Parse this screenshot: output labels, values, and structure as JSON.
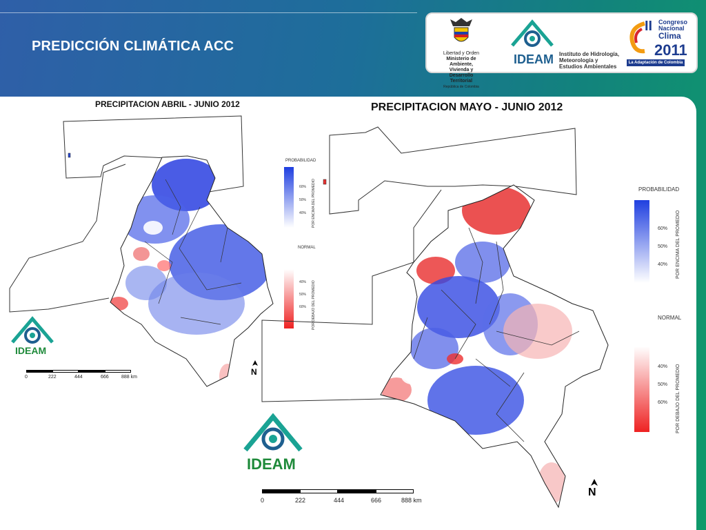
{
  "slide": {
    "title": "PREDICCIÓN CLIMÁTICA ACC"
  },
  "logos": {
    "colombia": {
      "lines": [
        "Libertad y Orden",
        "Ministerio de Ambiente,",
        "Vivienda y Desarrollo Territorial",
        "República de Colombia"
      ]
    },
    "ideam": {
      "name": "IDEAM",
      "desc": [
        "Instituto de Hidrología,",
        "Meteorología y",
        "Estudios Ambientales"
      ]
    },
    "congreso": {
      "numeral": "II",
      "lines": [
        "Congreso",
        "Nacional",
        "Clima"
      ],
      "year": "2011",
      "tagline": "La Adaptación de Colombia"
    }
  },
  "maps": [
    {
      "title": "PRECIPITACION  ABRIL - JUNIO 2012",
      "legend": {
        "above_title": "PROBABILIDAD",
        "above_ticks": [
          "60%",
          "50%",
          "40%"
        ],
        "above_side": "POR ENCIMA DEL PROMEDIO",
        "below_title": "NORMAL",
        "below_ticks": [
          "40%",
          "50%",
          "60%"
        ],
        "below_side": "POR DEBAJO DEL PROMEDIO"
      },
      "scale": [
        "0",
        "222",
        "444",
        "666",
        "888 km"
      ],
      "north": "N",
      "logo": "IDEAM"
    },
    {
      "title": "PRECIPITACION  MAYO - JUNIO 2012",
      "legend": {
        "above_title": "PROBABILIDAD",
        "above_ticks": [
          "60%",
          "50%",
          "40%"
        ],
        "above_side": "POR ENCIMA DEL PROMEDIO",
        "below_title": "NORMAL",
        "below_ticks": [
          "40%",
          "50%",
          "60%"
        ],
        "below_side": "POR DEBAJO DEL PROMEDIO"
      },
      "scale": [
        "0",
        "222",
        "444",
        "666",
        "888 km"
      ],
      "north": "N",
      "logo": "IDEAM"
    }
  ],
  "colors": {
    "above": "#1f3fe0",
    "below": "#ee2222",
    "normal": "#ffffff"
  }
}
